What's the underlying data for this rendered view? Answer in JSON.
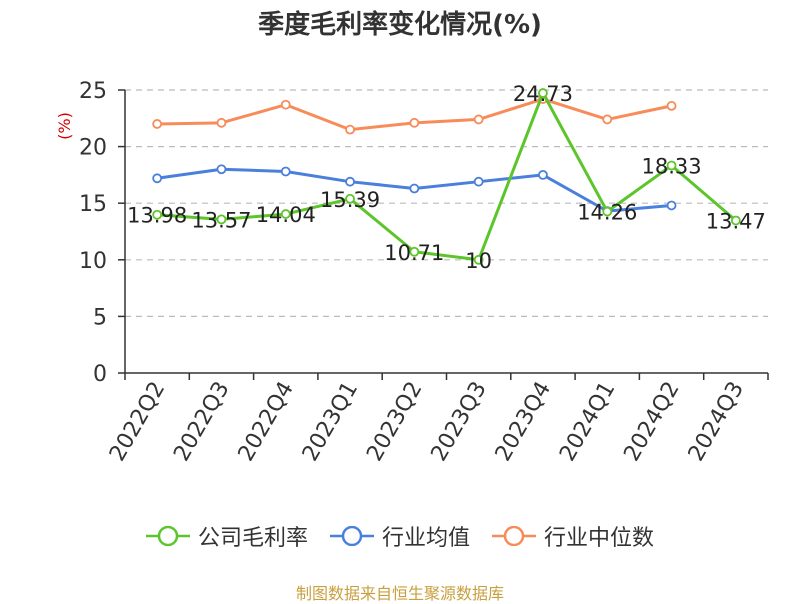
{
  "chart_data": {
    "type": "line",
    "title": "季度毛利率变化情况(%)",
    "ylabel": "(%)",
    "xlabel": "",
    "ylim": [
      0,
      25
    ],
    "yticks": [
      0,
      5,
      10,
      15,
      20,
      25
    ],
    "grid": true,
    "legend_position": "bottom",
    "categories": [
      "2022Q2",
      "2022Q3",
      "2022Q4",
      "2023Q1",
      "2023Q2",
      "2023Q3",
      "2023Q4",
      "2024Q1",
      "2024Q2",
      "2024Q3"
    ],
    "series": [
      {
        "name": "公司毛利率",
        "color": "#5bc52a",
        "values": [
          13.98,
          13.57,
          14.04,
          15.39,
          10.71,
          10,
          24.73,
          14.26,
          18.33,
          13.47
        ],
        "labels": [
          "13.98",
          "13.57",
          "14.04",
          "15.39",
          "10.71",
          "10",
          "24.73",
          "14.26",
          "18.33",
          "13.47"
        ]
      },
      {
        "name": "行业均值",
        "color": "#4a7fdc",
        "values": [
          17.2,
          18.0,
          17.8,
          16.9,
          16.3,
          16.9,
          17.5,
          14.3,
          14.8,
          null
        ]
      },
      {
        "name": "行业中位数",
        "color": "#f78c5a",
        "values": [
          22.0,
          22.1,
          23.7,
          21.5,
          22.1,
          22.4,
          24.2,
          22.4,
          23.6,
          null
        ]
      }
    ]
  },
  "source": {
    "text": "制图数据来自恒生聚源数据库",
    "color": "#c8a040"
  },
  "ylabel_color": "#d40000"
}
